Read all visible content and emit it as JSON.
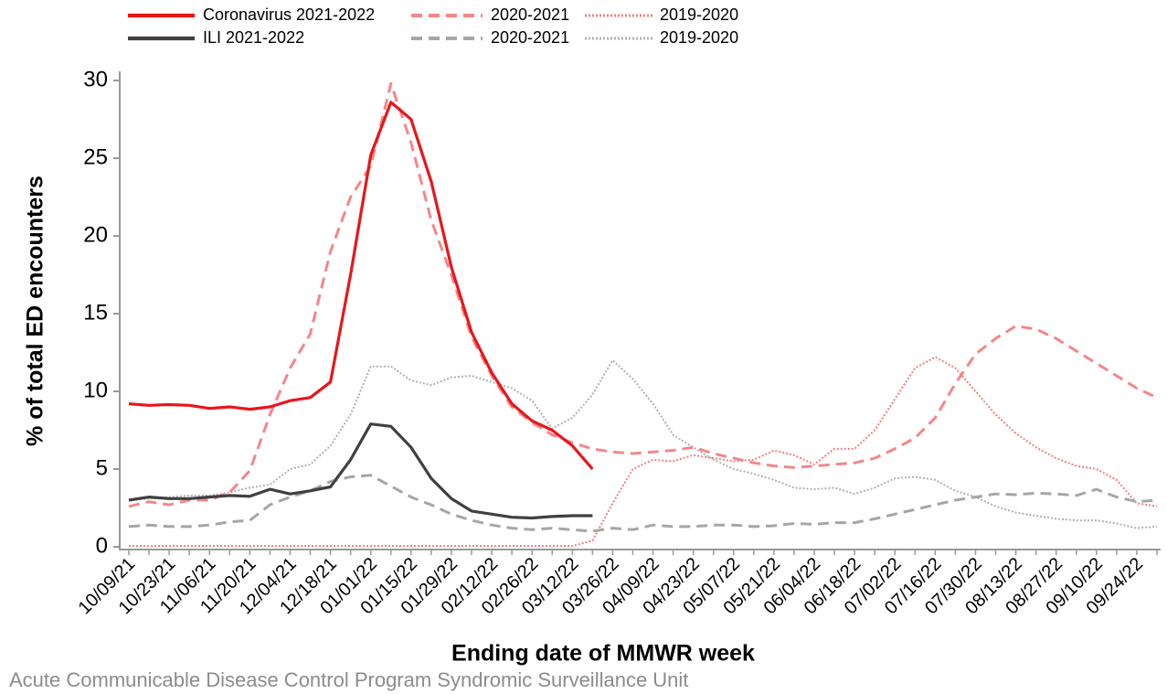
{
  "chart_data": {
    "type": "line",
    "y_label": "% of total ED encounters",
    "x_label": "Ending date of MMWR week",
    "source": "Acute Communicable Disease Control Program Syndromic Surveillance Unit",
    "categories": [
      "10/09/21",
      null,
      "10/23/21",
      null,
      "11/06/21",
      null,
      "11/20/21",
      null,
      "12/04/21",
      null,
      "12/18/21",
      null,
      "01/01/22",
      null,
      "01/15/22",
      null,
      "01/29/22",
      null,
      "02/12/22",
      null,
      "02/26/22",
      null,
      "03/12/22",
      null,
      "03/26/22",
      null,
      "04/09/22",
      null,
      "04/23/22",
      null,
      "05/07/22",
      null,
      "05/21/22",
      null,
      "06/04/22",
      null,
      "06/18/22",
      null,
      "07/02/22",
      null,
      "07/16/22",
      null,
      "07/30/22",
      null,
      "08/13/22",
      null,
      "08/27/22",
      null,
      "09/10/22",
      null,
      "09/24/22",
      null
    ],
    "ylim": [
      0,
      30
    ],
    "yticks": [
      0,
      5,
      10,
      15,
      20,
      25,
      30
    ],
    "series": [
      {
        "name": "Coronavirus 2021-2022",
        "color": "#e8161b",
        "dash": "solid",
        "values": [
          9.2,
          9.1,
          9.15,
          9.1,
          8.9,
          9.0,
          8.85,
          9.0,
          9.4,
          9.6,
          10.6,
          17.5,
          25.2,
          28.6,
          27.5,
          23.5,
          18,
          13.8,
          11.2,
          9.2,
          8.1,
          7.5,
          6.5,
          5.0,
          null,
          null,
          null,
          null,
          null,
          null,
          null,
          null,
          null,
          null,
          null,
          null,
          null,
          null,
          null,
          null,
          null,
          null,
          null,
          null,
          null,
          null,
          null,
          null,
          null,
          null,
          null,
          null
        ]
      },
      {
        "name": "ILI 2021-2022",
        "color": "#404040",
        "dash": "solid",
        "values": [
          3.0,
          3.2,
          3.1,
          3.1,
          3.2,
          3.3,
          3.25,
          3.7,
          3.4,
          3.6,
          3.85,
          5.6,
          7.9,
          7.75,
          6.4,
          4.4,
          3.1,
          2.3,
          2.1,
          1.9,
          1.85,
          1.95,
          2.0,
          2.0,
          null,
          null,
          null,
          null,
          null,
          null,
          null,
          null,
          null,
          null,
          null,
          null,
          null,
          null,
          null,
          null,
          null,
          null,
          null,
          null,
          null,
          null,
          null,
          null,
          null,
          null,
          null,
          null
        ]
      },
      {
        "name": "2020-2021",
        "color": "#f4868a",
        "dash": "dashed",
        "values": [
          2.6,
          2.9,
          2.7,
          3.0,
          3.0,
          3.5,
          4.9,
          8.5,
          11.5,
          13.7,
          19,
          22.5,
          24.5,
          29.8,
          26,
          21,
          17.5,
          13.5,
          11,
          9,
          8,
          7.2,
          6.7,
          6.3,
          6.1,
          6.0,
          6.1,
          6.2,
          6.4,
          6.0,
          5.7,
          5.4,
          5.2,
          5.1,
          5.2,
          5.3,
          5.4,
          5.7,
          6.3,
          7.0,
          8.3,
          10.5,
          12.4,
          13.4,
          14.2,
          14.0,
          13.4,
          12.6,
          11.8,
          11.0,
          10.2,
          9.6
        ]
      },
      {
        "name": "2020-2021",
        "color": "#a6a6a6",
        "dash": "dashed",
        "values": [
          1.3,
          1.4,
          1.3,
          1.3,
          1.4,
          1.6,
          1.7,
          2.7,
          3.2,
          3.6,
          4.2,
          4.5,
          4.6,
          3.9,
          3.2,
          2.7,
          2.1,
          1.7,
          1.4,
          1.2,
          1.1,
          1.2,
          1.1,
          1.0,
          1.2,
          1.1,
          1.4,
          1.3,
          1.3,
          1.4,
          1.4,
          1.3,
          1.35,
          1.5,
          1.45,
          1.55,
          1.55,
          1.8,
          2.1,
          2.4,
          2.7,
          3.0,
          3.2,
          3.4,
          3.35,
          3.45,
          3.4,
          3.3,
          3.7,
          3.2,
          2.9,
          3.0
        ]
      },
      {
        "name": "2019-2020",
        "color": "#f08080",
        "dash": "dotted",
        "values": [
          0.05,
          0.05,
          0.05,
          0.05,
          0.05,
          0.05,
          0.05,
          0.05,
          0.05,
          0.05,
          0.05,
          0.05,
          0.05,
          0.05,
          0.05,
          0.05,
          0.05,
          0.05,
          0.05,
          0.05,
          0.05,
          0.05,
          0.05,
          0.4,
          2.8,
          5.0,
          5.6,
          5.5,
          5.9,
          5.7,
          5.5,
          5.6,
          6.2,
          5.9,
          5.3,
          6.3,
          6.3,
          7.5,
          9.5,
          11.5,
          12.2,
          11.5,
          10.0,
          8.5,
          7.3,
          6.4,
          5.7,
          5.2,
          5.0,
          4.3,
          2.8,
          2.6
        ]
      },
      {
        "name": "2019-2020",
        "color": "#b0b0b0",
        "dash": "dotted",
        "values": [
          3.0,
          3.1,
          3.2,
          3.3,
          3.3,
          3.5,
          3.8,
          4.0,
          5.0,
          5.3,
          6.5,
          8.5,
          11.6,
          11.6,
          10.7,
          10.4,
          10.9,
          11.0,
          10.6,
          10.2,
          9.4,
          7.6,
          8.3,
          9.8,
          12.0,
          10.8,
          9.2,
          7.2,
          6.4,
          5.6,
          5.0,
          4.7,
          4.3,
          3.8,
          3.7,
          3.8,
          3.4,
          3.8,
          4.4,
          4.5,
          4.3,
          3.6,
          3.2,
          2.6,
          2.2,
          2.0,
          1.8,
          1.7,
          1.7,
          1.5,
          1.2,
          1.3
        ]
      }
    ]
  }
}
